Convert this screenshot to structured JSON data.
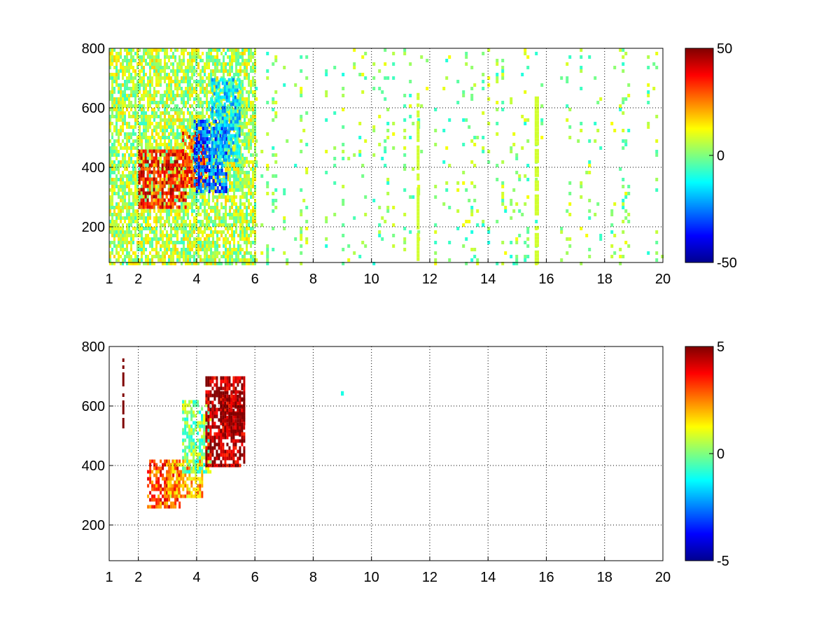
{
  "chart_data": [
    {
      "type": "heatmap",
      "xlim": [
        1,
        20
      ],
      "ylim": [
        80,
        800
      ],
      "xticks": [
        1,
        2,
        4,
        6,
        8,
        10,
        12,
        14,
        16,
        18,
        20
      ],
      "yticks": [
        200,
        400,
        600,
        800
      ],
      "x_tick_labels": [
        "1",
        "2",
        "4",
        "6",
        "8",
        "10",
        "12",
        "14",
        "16",
        "18",
        "20"
      ],
      "y_tick_labels": [
        "200",
        "400",
        "600",
        "800"
      ],
      "grid": true,
      "colormap": "jet",
      "clim": [
        -50,
        50
      ],
      "colorbar_ticks": [
        -50,
        0,
        50
      ],
      "colorbar_tick_labels": [
        "-50",
        "0",
        "50"
      ],
      "colorbar_placement": "right",
      "features": [
        {
          "kind": "cloud",
          "x": [
            1.0,
            6.0
          ],
          "y": [
            80,
            800
          ],
          "value": 5,
          "density": 0.75
        },
        {
          "kind": "blob",
          "x": [
            2.0,
            3.6
          ],
          "y": [
            260,
            460
          ],
          "value": 35
        },
        {
          "kind": "blob",
          "x": [
            3.5,
            4.3
          ],
          "y": [
            340,
            520
          ],
          "value": 32
        },
        {
          "kind": "blob",
          "x": [
            3.9,
            5.0
          ],
          "y": [
            320,
            560
          ],
          "value": -28
        },
        {
          "kind": "blob",
          "x": [
            4.5,
            5.5
          ],
          "y": [
            420,
            700
          ],
          "value": -15
        },
        {
          "kind": "columns",
          "x": [
            6.0,
            20.0
          ],
          "y": [
            80,
            800
          ],
          "value": 0,
          "density": 0.08
        },
        {
          "kind": "stripe",
          "x": [
            11.55,
            11.65
          ],
          "y": [
            80,
            650
          ],
          "value": 8
        },
        {
          "kind": "stripe",
          "x": [
            15.6,
            15.75
          ],
          "y": [
            80,
            650
          ],
          "value": 8
        }
      ]
    },
    {
      "type": "heatmap",
      "xlim": [
        1,
        20
      ],
      "ylim": [
        80,
        800
      ],
      "xticks": [
        1,
        2,
        4,
        6,
        8,
        10,
        12,
        14,
        16,
        18,
        20
      ],
      "yticks": [
        200,
        400,
        600,
        800
      ],
      "x_tick_labels": [
        "1",
        "2",
        "4",
        "6",
        "8",
        "10",
        "12",
        "14",
        "16",
        "18",
        "20"
      ],
      "y_tick_labels": [
        "200",
        "400",
        "600",
        "800"
      ],
      "grid": true,
      "colormap": "jet",
      "clim": [
        -5,
        5
      ],
      "colorbar_ticks": [
        -5,
        0,
        5
      ],
      "colorbar_tick_labels": [
        "-5",
        "0",
        "5"
      ],
      "colorbar_placement": "right",
      "features": [
        {
          "kind": "blob",
          "x": [
            2.3,
            3.4
          ],
          "y": [
            260,
            420
          ],
          "value": 3
        },
        {
          "kind": "blob",
          "x": [
            3.0,
            4.2
          ],
          "y": [
            300,
            420
          ],
          "value": 2
        },
        {
          "kind": "blob",
          "x": [
            3.5,
            4.5
          ],
          "y": [
            380,
            620
          ],
          "value": 0
        },
        {
          "kind": "blob",
          "x": [
            4.3,
            5.6
          ],
          "y": [
            400,
            700
          ],
          "value": 4.5
        },
        {
          "kind": "blob",
          "x": [
            4.8,
            5.6
          ],
          "y": [
            500,
            650
          ],
          "value": 5
        },
        {
          "kind": "stripe",
          "x": [
            1.45,
            1.5
          ],
          "y": [
            520,
            760
          ],
          "value": 5
        },
        {
          "kind": "spot",
          "x": [
            8.95,
            9.05
          ],
          "y": [
            635,
            650
          ],
          "value": -1
        }
      ]
    }
  ]
}
